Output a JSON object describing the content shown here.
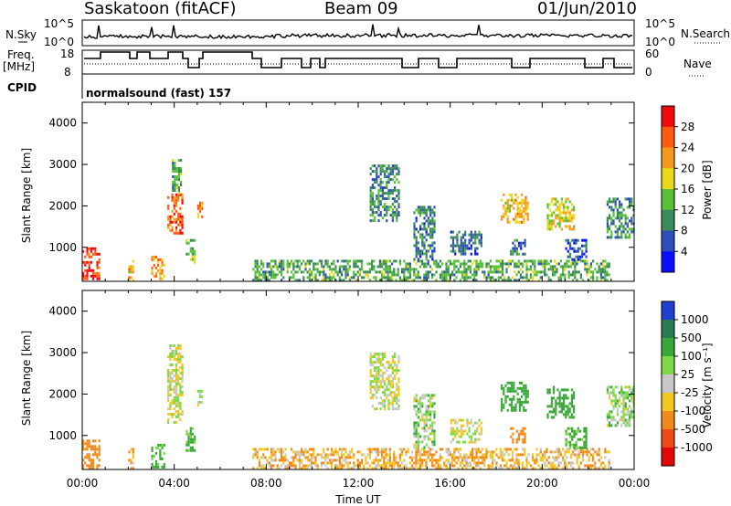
{
  "header": {
    "station": "Saskatoon (fitACF)",
    "beam": "Beam 09",
    "date": "01/Jun/2010"
  },
  "top_panels": {
    "nsky_label": "N.Sky",
    "nsky_ticks": [
      "10^5",
      "10^0"
    ],
    "nsearch_label": "N.Search",
    "nsearch_ticks": [
      "10^5",
      "10^0"
    ],
    "freq_label_1": "Freq.",
    "freq_label_2": "[MHz]",
    "freq_ticks": [
      "18",
      "8"
    ],
    "nave_label": "Nave",
    "nave_ticks": [
      "60",
      "0"
    ],
    "cpid_label": "CPID",
    "cpid_value": "normalsound (fast) 157"
  },
  "chart_data": [
    {
      "type": "heatmap",
      "name": "power",
      "xlabel": "Time UT",
      "ylabel": "Slant Range [km]",
      "xlim": [
        0,
        24
      ],
      "ylim": [
        180,
        4500
      ],
      "yticks": [
        "1000",
        "2000",
        "3000",
        "4000"
      ],
      "colorbar_label": "Power [dB]",
      "colorbar_ticks": [
        "4",
        "8",
        "12",
        "16",
        "20",
        "24",
        "28"
      ],
      "colorbar_colors": [
        "#0a10ff",
        "#2d4eb8",
        "#3a8a5a",
        "#56c036",
        "#ead81a",
        "#f39a1e",
        "#ff5a14",
        "#ee0a0a"
      ],
      "echo_regions": [
        {
          "t0": 0.0,
          "t1": 0.8,
          "r0": 180,
          "r1": 1000,
          "power": 28
        },
        {
          "t0": 2.0,
          "t1": 2.3,
          "r0": 180,
          "r1": 700,
          "power": 20
        },
        {
          "t0": 3.0,
          "t1": 3.6,
          "r0": 200,
          "r1": 800,
          "power": 22
        },
        {
          "t0": 3.7,
          "t1": 4.4,
          "r0": 1300,
          "r1": 2300,
          "power": 26
        },
        {
          "t0": 3.9,
          "t1": 4.3,
          "r0": 2300,
          "r1": 3200,
          "power": 12
        },
        {
          "t0": 4.5,
          "t1": 4.9,
          "r0": 600,
          "r1": 1200,
          "power": 14
        },
        {
          "t0": 5.0,
          "t1": 5.3,
          "r0": 1700,
          "r1": 2100,
          "power": 22
        },
        {
          "t0": 7.4,
          "t1": 23.0,
          "r0": 180,
          "r1": 700,
          "power": 12
        },
        {
          "t0": 12.5,
          "t1": 13.8,
          "r0": 1600,
          "r1": 3000,
          "power": 10
        },
        {
          "t0": 14.4,
          "t1": 15.4,
          "r0": 700,
          "r1": 2000,
          "power": 8
        },
        {
          "t0": 16.0,
          "t1": 17.4,
          "r0": 800,
          "r1": 1400,
          "power": 8
        },
        {
          "t0": 18.2,
          "t1": 19.4,
          "r0": 1600,
          "r1": 2300,
          "power": 20
        },
        {
          "t0": 18.6,
          "t1": 19.3,
          "r0": 800,
          "r1": 1200,
          "power": 8
        },
        {
          "t0": 20.2,
          "t1": 21.4,
          "r0": 1400,
          "r1": 2200,
          "power": 18
        },
        {
          "t0": 21.0,
          "t1": 22.0,
          "r0": 700,
          "r1": 1200,
          "power": 6
        },
        {
          "t0": 22.8,
          "t1": 24.0,
          "r0": 1200,
          "r1": 2200,
          "power": 10
        }
      ]
    },
    {
      "type": "heatmap",
      "name": "velocity",
      "xlabel": "Time UT",
      "ylabel": "Slant Range [km]",
      "xlim": [
        0,
        24
      ],
      "ylim": [
        180,
        4500
      ],
      "yticks": [
        "1000",
        "2000",
        "3000",
        "4000"
      ],
      "xticks": [
        "00:00",
        "04:00",
        "08:00",
        "12:00",
        "16:00",
        "20:00",
        "00:00"
      ],
      "colorbar_label": "Velocity [m s⁻¹]",
      "colorbar_ticks": [
        "1000",
        "500",
        "100",
        "25",
        "-25",
        "-100",
        "-500",
        "-1000"
      ],
      "colorbar_colors": [
        "#1e3fd0",
        "#2a7a52",
        "#3aa838",
        "#7ed84a",
        "#c8c8c8",
        "#f0c820",
        "#f08a18",
        "#f04818",
        "#e00808"
      ],
      "echo_regions": [
        {
          "t0": 0.0,
          "t1": 0.8,
          "r0": 180,
          "r1": 900,
          "velocity": -300
        },
        {
          "t0": 2.0,
          "t1": 2.3,
          "r0": 180,
          "r1": 700,
          "velocity": -100
        },
        {
          "t0": 3.0,
          "t1": 3.6,
          "r0": 200,
          "r1": 800,
          "velocity": 150
        },
        {
          "t0": 3.7,
          "t1": 4.4,
          "r0": 1300,
          "r1": 3200,
          "velocity": 0
        },
        {
          "t0": 4.5,
          "t1": 4.9,
          "r0": 600,
          "r1": 1200,
          "velocity": 150
        },
        {
          "t0": 5.0,
          "t1": 5.3,
          "r0": 1700,
          "r1": 2100,
          "velocity": 0
        },
        {
          "t0": 7.4,
          "t1": 23.0,
          "r0": 180,
          "r1": 700,
          "velocity": -80
        },
        {
          "t0": 12.5,
          "t1": 13.8,
          "r0": 1600,
          "r1": 3000,
          "velocity": 0
        },
        {
          "t0": 14.4,
          "t1": 15.4,
          "r0": 700,
          "r1": 2000,
          "velocity": 50
        },
        {
          "t0": 16.0,
          "t1": 17.4,
          "r0": 800,
          "r1": 1400,
          "velocity": 0
        },
        {
          "t0": 18.2,
          "t1": 19.4,
          "r0": 1600,
          "r1": 2300,
          "velocity": 300
        },
        {
          "t0": 18.6,
          "t1": 19.3,
          "r0": 800,
          "r1": 1200,
          "velocity": -400
        },
        {
          "t0": 20.2,
          "t1": 21.4,
          "r0": 1400,
          "r1": 2200,
          "velocity": 200
        },
        {
          "t0": 21.0,
          "t1": 22.0,
          "r0": 700,
          "r1": 1200,
          "velocity": 150
        },
        {
          "t0": 22.8,
          "t1": 24.0,
          "r0": 1200,
          "r1": 2200,
          "velocity": 50
        }
      ]
    }
  ]
}
